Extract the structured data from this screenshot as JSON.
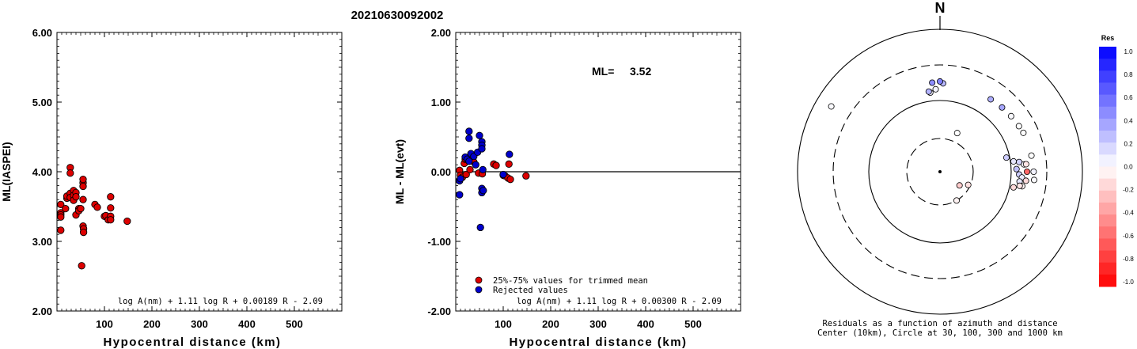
{
  "title": "20210630092002",
  "chart_data": [
    {
      "type": "scatter",
      "xlabel": "Hypocentral distance (km)",
      "ylabel": "ML(IASPEI)",
      "xlim": [
        0,
        600
      ],
      "ylim": [
        2.0,
        6.0
      ],
      "x_ticks": [
        "100",
        "200",
        "300",
        "400",
        "500"
      ],
      "y_ticks": [
        "2.00",
        "3.00",
        "4.00",
        "5.00",
        "6.00"
      ],
      "formula": "log A(nm) + 1.11 log R + 0.00189 R - 2.09",
      "points": [
        [
          8,
          3.53
        ],
        [
          8,
          3.41
        ],
        [
          8,
          3.38
        ],
        [
          8,
          3.35
        ],
        [
          8,
          3.16
        ],
        [
          18,
          3.47
        ],
        [
          21,
          3.62
        ],
        [
          21,
          3.65
        ],
        [
          28,
          4.06
        ],
        [
          28,
          3.98
        ],
        [
          28,
          3.69
        ],
        [
          28,
          3.63
        ],
        [
          35,
          3.73
        ],
        [
          35,
          3.66
        ],
        [
          35,
          3.59
        ],
        [
          40,
          3.7
        ],
        [
          40,
          3.64
        ],
        [
          40,
          3.38
        ],
        [
          46,
          3.47
        ],
        [
          46,
          3.44
        ],
        [
          50,
          3.47
        ],
        [
          52,
          2.65
        ],
        [
          55,
          3.84
        ],
        [
          55,
          3.89
        ],
        [
          55,
          3.79
        ],
        [
          55,
          3.6
        ],
        [
          55,
          3.22
        ],
        [
          56,
          3.18
        ],
        [
          56,
          3.13
        ],
        [
          80,
          3.53
        ],
        [
          85,
          3.49
        ],
        [
          100,
          3.36
        ],
        [
          103,
          3.37
        ],
        [
          108,
          3.31
        ],
        [
          113,
          3.64
        ],
        [
          113,
          3.48
        ],
        [
          113,
          3.36
        ],
        [
          113,
          3.31
        ],
        [
          148,
          3.29
        ]
      ]
    },
    {
      "type": "scatter",
      "xlabel": "Hypocentral distance (km)",
      "ylabel": "ML - ML(evt)",
      "xlim": [
        0,
        600
      ],
      "ylim": [
        -2.0,
        2.0
      ],
      "x_ticks": [
        "100",
        "200",
        "300",
        "400",
        "500"
      ],
      "y_ticks": [
        "-2.00",
        "-1.00",
        "0.00",
        "1.00",
        "2.00"
      ],
      "reference_line": 0.0,
      "annotation_label": "ML=",
      "annotation_value": "3.52",
      "formula": "log A(nm) + 1.11 log R + 0.00300 R - 2.09",
      "series": [
        {
          "name": "25%-75% values for trimmed mean",
          "color": "#dd0000",
          "points": [
            [
              8,
              0.02
            ],
            [
              10,
              -0.05
            ],
            [
              14,
              -0.08
            ],
            [
              18,
              0.12
            ],
            [
              20,
              0.18
            ],
            [
              22,
              -0.04
            ],
            [
              30,
              0.03
            ],
            [
              38,
              0.14
            ],
            [
              48,
              -0.02
            ],
            [
              56,
              -0.03
            ],
            [
              80,
              0.11
            ],
            [
              85,
              0.09
            ],
            [
              100,
              -0.05
            ],
            [
              104,
              -0.06
            ],
            [
              110,
              -0.09
            ],
            [
              112,
              0.11
            ],
            [
              115,
              -0.11
            ],
            [
              148,
              -0.06
            ]
          ]
        },
        {
          "name": "Rejected values",
          "color": "#0000cc",
          "points": [
            [
              8,
              -0.33
            ],
            [
              8,
              -0.13
            ],
            [
              10,
              -0.1
            ],
            [
              20,
              0.21
            ],
            [
              24,
              0.18
            ],
            [
              28,
              0.58
            ],
            [
              28,
              0.48
            ],
            [
              28,
              0.15
            ],
            [
              32,
              0.26
            ],
            [
              38,
              0.22
            ],
            [
              42,
              0.1
            ],
            [
              46,
              0.28
            ],
            [
              50,
              0.52
            ],
            [
              55,
              0.43
            ],
            [
              55,
              0.38
            ],
            [
              55,
              0.33
            ],
            [
              55,
              -0.24
            ],
            [
              55,
              -0.3
            ],
            [
              52,
              -0.8
            ],
            [
              57,
              0.03
            ],
            [
              58,
              -0.27
            ],
            [
              100,
              -0.04
            ],
            [
              113,
              0.25
            ]
          ]
        }
      ]
    },
    {
      "type": "polar-scatter",
      "north_label": "N",
      "caption_line1": "Residuals as a function of azimuth and distance",
      "caption_line2": "Center (10km), Circle at 30, 100, 300 and 1000 km",
      "rings_km": [
        30,
        100,
        300,
        1000
      ],
      "ring_styles": [
        "dashed",
        "solid",
        "dashed",
        "solid"
      ],
      "colorbar_title": "Res",
      "colorbar_ticks": [
        "1.0",
        "0.8",
        "0.6",
        "0.4",
        "0.2",
        "0.0",
        "-0.2",
        "-0.4",
        "-0.6",
        "-0.8",
        "-1.0"
      ],
      "colorbar_range": [
        -1.0,
        1.0
      ],
      "stations": [
        {
          "az": 301,
          "dist_km": 590,
          "res": 0.02
        },
        {
          "az": 353,
          "dist_km": 130,
          "res": 0.05
        },
        {
          "az": 24,
          "dist_km": 40,
          "res": 0.0
        },
        {
          "az": 352,
          "dist_km": 135,
          "res": 0.3
        },
        {
          "az": 357,
          "dist_km": 142,
          "res": 0.05
        },
        {
          "az": 2,
          "dist_km": 170,
          "res": 0.28
        },
        {
          "az": 355,
          "dist_km": 175,
          "res": 0.45
        },
        {
          "az": 0,
          "dist_km": 180,
          "res": 0.5
        },
        {
          "az": 35,
          "dist_km": 170,
          "res": 0.32
        },
        {
          "az": 44,
          "dist_km": 175,
          "res": 0.35
        },
        {
          "az": 52,
          "dist_km": 180,
          "res": 0.02
        },
        {
          "az": 60,
          "dist_km": 185,
          "res": 0.0
        },
        {
          "az": 65,
          "dist_km": 190,
          "res": 0.0
        },
        {
          "az": 80,
          "dist_km": 195,
          "res": 0.0
        },
        {
          "az": 90,
          "dist_km": 200,
          "res": 0.05
        },
        {
          "az": 95,
          "dist_km": 205,
          "res": 0.02
        },
        {
          "az": 85,
          "dist_km": 150,
          "res": 0.03
        },
        {
          "az": 82,
          "dist_km": 110,
          "res": 0.1
        },
        {
          "az": 78,
          "dist_km": 90,
          "res": 0.2
        },
        {
          "az": 83,
          "dist_km": 130,
          "res": 0.18
        },
        {
          "az": 88,
          "dist_km": 118,
          "res": 0.25
        },
        {
          "az": 92,
          "dist_km": 128,
          "res": 0.2
        },
        {
          "az": 94,
          "dist_km": 140,
          "res": 0.08
        },
        {
          "az": 97,
          "dist_km": 132,
          "res": 0.1
        },
        {
          "az": 100,
          "dist_km": 146,
          "res": -0.05
        },
        {
          "az": 85,
          "dist_km": 160,
          "res": -0.1
        },
        {
          "az": 90,
          "dist_km": 163,
          "res": -0.6
        },
        {
          "az": 96,
          "dist_km": 160,
          "res": -0.15
        },
        {
          "az": 100,
          "dist_km": 135,
          "res": -0.1
        },
        {
          "az": 102,
          "dist_km": 113,
          "res": -0.15
        },
        {
          "az": 115,
          "dist_km": 28,
          "res": -0.12
        },
        {
          "az": 150,
          "dist_km": 30,
          "res": -0.05
        },
        {
          "az": 125,
          "dist_km": 22,
          "res": -0.2
        }
      ]
    }
  ]
}
